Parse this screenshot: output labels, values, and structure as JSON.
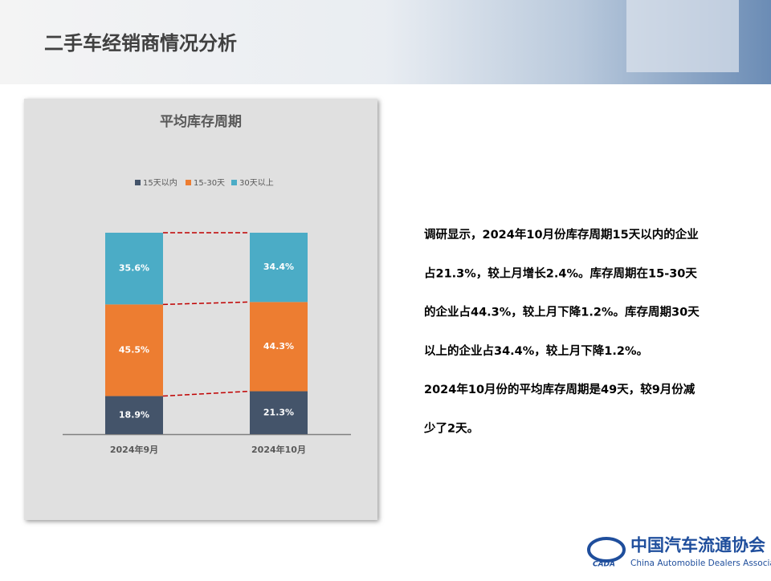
{
  "header": {
    "title": "二手车经销商情况分析"
  },
  "chart_data": {
    "type": "bar",
    "stacked": true,
    "title": "平均库存周期",
    "categories": [
      "2024年9月",
      "2024年10月"
    ],
    "series": [
      {
        "name": "15天以内",
        "color": "#44546a",
        "values": [
          18.9,
          21.3
        ],
        "value_labels": [
          "18.9%",
          "21.3%"
        ]
      },
      {
        "name": "15-30天",
        "color": "#ed7d31",
        "values": [
          45.5,
          44.3
        ],
        "value_labels": [
          "45.5%",
          "44.3%"
        ]
      },
      {
        "name": "30天以上",
        "color": "#4bacc6",
        "values": [
          35.6,
          34.4
        ],
        "value_labels": [
          "35.6%",
          "34.4%"
        ]
      }
    ]
  },
  "text": {
    "lines": [
      "调研显示，2024年10月份库存周期15天以内的企业",
      "占21.3%，较上月增长2.4%。库存周期在15-30天",
      "的企业占44.3%，较上月下降1.2%。库存周期30天",
      "以上的企业占34.4%，较上月下降1.2%。",
      "2024年10月份的平均库存周期是49天，较9月份减",
      "少了2天。"
    ]
  },
  "logo": {
    "mark": "CADA",
    "name_cn": "中国汽车流通协会",
    "name_en": "China Automobile Dealers Association"
  }
}
